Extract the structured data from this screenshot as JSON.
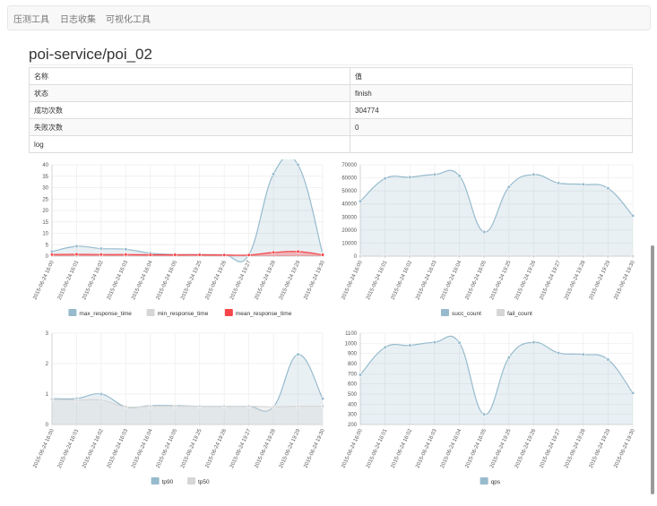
{
  "nav": {
    "items": [
      "压测工具",
      "日志收集",
      "可视化工具"
    ]
  },
  "page": {
    "title": "poi-service/poi_02"
  },
  "table": {
    "header": [
      "名称",
      "值"
    ],
    "rows": [
      [
        "状态",
        "finish"
      ],
      [
        "成功次数",
        "304774"
      ],
      [
        "失败次数",
        "0"
      ],
      [
        "log",
        ""
      ]
    ]
  },
  "colors": {
    "blue": "#97bbcd",
    "grey": "#d6d6d6",
    "red": "#f7464a"
  },
  "chart_data": [
    {
      "type": "area",
      "categories": [
        "2015-06-24 16:00",
        "2015-06-24 16:01",
        "2015-06-24 16:02",
        "2015-06-24 16:03",
        "2015-06-24 16:04",
        "2015-06-24 16:05",
        "2015-06-24 19:25",
        "2015-06-24 19:26",
        "2015-06-24 19:27",
        "2015-06-24 19:28",
        "2015-06-24 19:29",
        "2015-06-24 19:30"
      ],
      "yticks": [
        0,
        5,
        10,
        15,
        20,
        25,
        30,
        35,
        40
      ],
      "ylim": [
        0,
        40
      ],
      "series": [
        {
          "name": "max_response_time",
          "color": "#97bbcd",
          "values": [
            2,
            4.3,
            3.3,
            3,
            1.3,
            0.7,
            0.7,
            0.6,
            0.6,
            36,
            40,
            1
          ]
        },
        {
          "name": "min_response_time",
          "color": "#d6d6d6",
          "values": [
            0.2,
            0.2,
            0.2,
            0.2,
            0.2,
            0.2,
            0.2,
            0.2,
            0.2,
            0.2,
            0.2,
            0.2
          ]
        },
        {
          "name": "mean_response_time",
          "color": "#f7464a",
          "values": [
            0.7,
            0.8,
            0.7,
            0.7,
            0.6,
            0.6,
            0.6,
            0.5,
            0.5,
            1.6,
            2,
            0.6
          ]
        }
      ],
      "legend": "bottom"
    },
    {
      "type": "area",
      "categories": [
        "2015-06-24 16:00",
        "2015-06-24 16:01",
        "2015-06-24 16:02",
        "2015-06-24 16:03",
        "2015-06-24 16:04",
        "2015-06-24 16:05",
        "2015-06-24 19:25",
        "2015-06-24 19:26",
        "2015-06-24 19:27",
        "2015-06-24 19:28",
        "2015-06-24 19:29",
        "2015-06-24 19:30"
      ],
      "yticks": [
        0,
        10000,
        20000,
        30000,
        40000,
        50000,
        60000,
        70000
      ],
      "ylim": [
        0,
        70000
      ],
      "series": [
        {
          "name": "succ_count",
          "color": "#97bbcd",
          "values": [
            42000,
            59500,
            60500,
            62500,
            61500,
            18500,
            53000,
            62500,
            56000,
            55000,
            52000,
            31000
          ]
        },
        {
          "name": "fail_count",
          "color": "#d6d6d6",
          "values": [
            0,
            0,
            0,
            0,
            0,
            0,
            0,
            0,
            0,
            0,
            0,
            0
          ]
        }
      ],
      "legend": "bottom"
    },
    {
      "type": "area",
      "categories": [
        "2015-06-24 16:00",
        "2015-06-24 16:01",
        "2015-06-24 16:02",
        "2015-06-24 16:03",
        "2015-06-24 16:04",
        "2015-06-24 16:05",
        "2015-06-24 19:25",
        "2015-06-24 19:26",
        "2015-06-24 19:27",
        "2015-06-24 19:28",
        "2015-06-24 19:29",
        "2015-06-24 19:30"
      ],
      "yticks": [
        0,
        1,
        2,
        3
      ],
      "ylim": [
        0,
        3
      ],
      "series": [
        {
          "name": "tp90",
          "color": "#97bbcd",
          "values": [
            0.85,
            0.85,
            1,
            0.58,
            0.62,
            0.62,
            0.6,
            0.6,
            0.6,
            0.58,
            2.3,
            0.85
          ]
        },
        {
          "name": "tp50",
          "color": "#d6d6d6",
          "values": [
            0.82,
            0.8,
            0.8,
            0.58,
            0.6,
            0.6,
            0.6,
            0.6,
            0.6,
            0.58,
            0.6,
            0.6
          ]
        }
      ],
      "legend": "bottom"
    },
    {
      "type": "area",
      "categories": [
        "2015-06-24 16:00",
        "2015-06-24 16:01",
        "2015-06-24 16:02",
        "2015-06-24 16:03",
        "2015-06-24 16:04",
        "2015-06-24 16:05",
        "2015-06-24 19:25",
        "2015-06-24 19:26",
        "2015-06-24 19:27",
        "2015-06-24 19:28",
        "2015-06-24 19:29",
        "2015-06-24 19:30"
      ],
      "yticks": [
        200,
        300,
        400,
        500,
        600,
        700,
        800,
        900,
        1000,
        1100
      ],
      "ylim": [
        200,
        1100
      ],
      "series": [
        {
          "name": "qps",
          "color": "#97bbcd",
          "values": [
            690,
            960,
            980,
            1010,
            1005,
            300,
            860,
            1010,
            905,
            890,
            840,
            510
          ]
        }
      ],
      "legend": "bottom"
    }
  ]
}
